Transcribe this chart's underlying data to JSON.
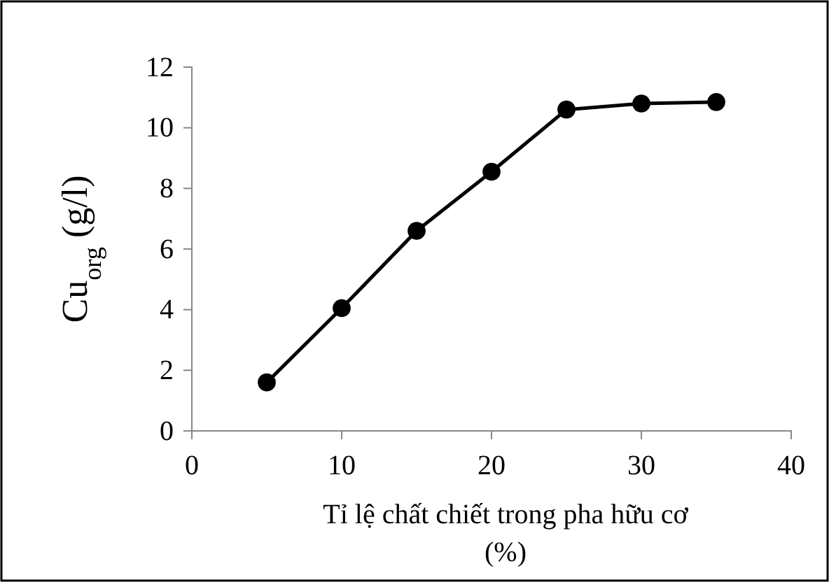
{
  "chart_data": {
    "type": "line",
    "xlabel": "Tỉ lệ chất chiết trong pha hữu cơ (%)",
    "ylabel": "Cu$_{org}$  (g/l)",
    "x": [
      5,
      10,
      15,
      20,
      25,
      30,
      35
    ],
    "series": [
      {
        "color": "#000000",
        "values": [
          1.6,
          4.05,
          6.6,
          8.55,
          10.6,
          10.8,
          10.85
        ]
      }
    ],
    "xlim": [
      0,
      40
    ],
    "xticks": [
      0,
      10,
      20,
      30,
      40
    ],
    "ylim": [
      0,
      12
    ],
    "yticks": [
      0,
      2,
      4,
      6,
      8,
      10,
      12
    ],
    "marker": "circle",
    "line_style": "solid"
  }
}
